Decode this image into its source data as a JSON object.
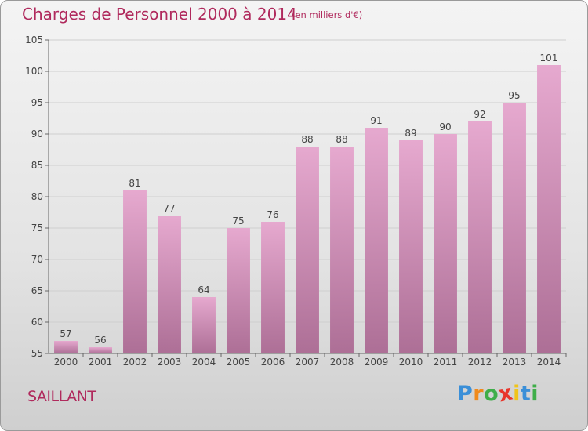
{
  "title": "Charges de Personnel 2000 à 2014",
  "subtitle": "(en milliers d'€)",
  "commune": "SAILLANT",
  "logo": {
    "letters": [
      "P",
      "r",
      "o",
      "x",
      "i",
      "t",
      "i"
    ],
    "colors": [
      "#3a8fd8",
      "#f08a1c",
      "#3fae49",
      "#e8352b",
      "#f0c419",
      "#3a8fd8",
      "#3fae49"
    ]
  },
  "colors": {
    "accent": "#b02a5d",
    "bar_top": "#e6a9cf",
    "bar_bottom": "#ad6f96"
  },
  "chart_data": {
    "type": "bar",
    "title": "Charges de Personnel 2000 à 2014",
    "xlabel": "",
    "ylabel": "",
    "categories": [
      "2000",
      "2001",
      "2002",
      "2003",
      "2004",
      "2005",
      "2006",
      "2007",
      "2008",
      "2009",
      "2010",
      "2011",
      "2012",
      "2013",
      "2014"
    ],
    "values": [
      57,
      56,
      81,
      77,
      64,
      75,
      76,
      88,
      88,
      91,
      89,
      90,
      92,
      95,
      101
    ],
    "ylim": [
      55,
      105
    ],
    "yticks": [
      55,
      60,
      65,
      70,
      75,
      80,
      85,
      90,
      95,
      100,
      105
    ],
    "grid": true
  }
}
